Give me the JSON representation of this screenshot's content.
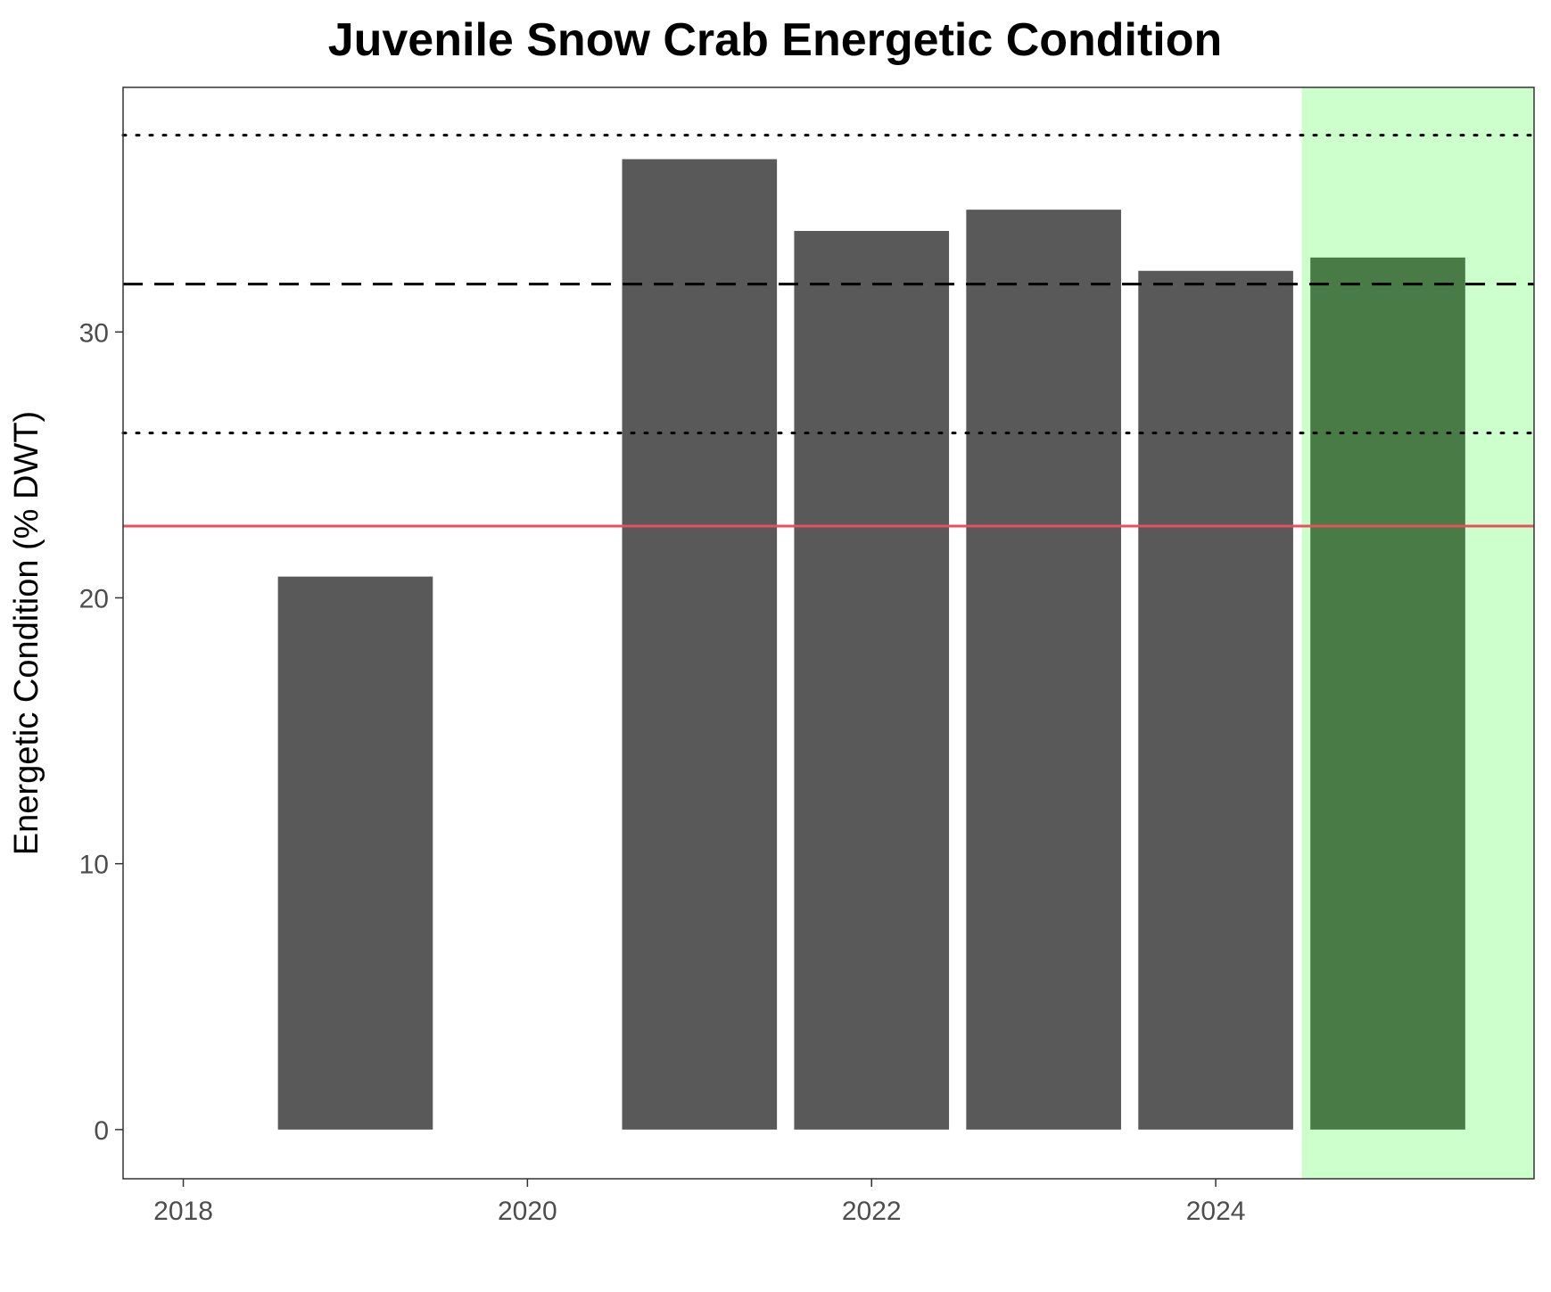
{
  "chart_data": {
    "type": "bar",
    "title": "Juvenile Snow Crab Energetic Condition",
    "xlabel": "",
    "ylabel": "Energetic Condition (% DWT)",
    "x": [
      2019,
      2021,
      2022,
      2023,
      2024,
      2025
    ],
    "values": [
      20.8,
      36.5,
      33.8,
      34.6,
      32.3,
      32.8
    ],
    "xlim": [
      2017.65,
      2025.85
    ],
    "ylim": [
      -1.85,
      39.2
    ],
    "xticks": [
      2018,
      2020,
      2022,
      2024
    ],
    "xtick_labels": [
      "2018",
      "2020",
      "2022",
      "2024"
    ],
    "yticks": [
      0,
      10,
      20,
      30
    ],
    "ytick_labels": [
      "0",
      "10",
      "20",
      "30"
    ],
    "reference_lines": [
      {
        "kind": "mean",
        "style": "dashed",
        "value": 31.8,
        "color": "#000000"
      },
      {
        "kind": "upper_sd",
        "style": "dotted",
        "value": 37.4,
        "color": "#000000"
      },
      {
        "kind": "lower_sd",
        "style": "dotted",
        "value": 26.2,
        "color": "#000000"
      },
      {
        "kind": "threshold",
        "style": "solid",
        "value": 22.7,
        "color": "#e8505b"
      }
    ],
    "highlight_region": {
      "x_start": 2024.5,
      "x_end": 2025.85,
      "color": "#ccffcc"
    },
    "bar_color": "#595959",
    "highlight_bar_color": "#487b45",
    "grid": false
  }
}
